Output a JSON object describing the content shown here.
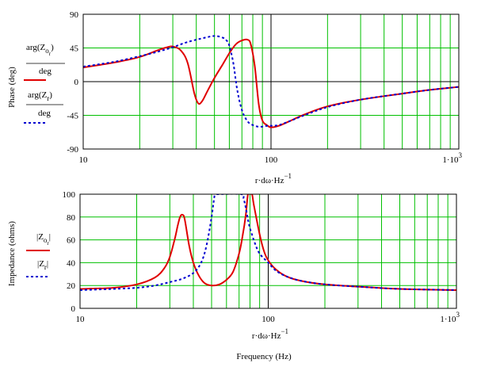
{
  "colors": {
    "background": "#ffffff",
    "grid": "#00c000",
    "axis": "#000000",
    "series_a": "#e00000",
    "series_b": "#0000d0"
  },
  "chart_data": [
    {
      "type": "line",
      "xscale": "log",
      "xlim": [
        10,
        1000
      ],
      "ylim": [
        -90,
        90
      ],
      "yticks": [
        90,
        45,
        0,
        -45,
        -90
      ],
      "xticks": [
        "10",
        "100",
        "1·10"
      ],
      "xtick_exponent": "3",
      "ylabel": "Phase (deg)",
      "xlabel_expr": "r·dω·Hz",
      "xlabel_exponent": "−1",
      "legend": [
        {
          "num": "arg(Z",
          "sub": "o",
          "subsub": "r",
          "tail": ")",
          "den": "deg"
        },
        {
          "num": "arg(Z",
          "sub": "r",
          "subsub": "",
          "tail": ")",
          "den": "deg"
        }
      ],
      "series": [
        {
          "style": "solid",
          "x": [
            10,
            12,
            15,
            20,
            25,
            28,
            30,
            33,
            36,
            39,
            41,
            43,
            46,
            50,
            55,
            60,
            65,
            70,
            75,
            78,
            82,
            86,
            90,
            95,
            100,
            110,
            125,
            150,
            200,
            300,
            500,
            700,
            1000
          ],
          "y": [
            19,
            22,
            26,
            33,
            42,
            46,
            47,
            42,
            25,
            -15,
            -29,
            -26,
            -12,
            5,
            22,
            38,
            50,
            55,
            56,
            50,
            20,
            -30,
            -52,
            -58,
            -61,
            -59,
            -53,
            -44,
            -33,
            -24,
            -16,
            -11,
            -7
          ]
        },
        {
          "style": "dashed",
          "x": [
            10,
            12,
            15,
            20,
            25,
            30,
            35,
            40,
            45,
            50,
            55,
            58,
            60,
            63,
            66,
            70,
            75,
            80,
            85,
            90,
            95,
            100,
            110,
            125,
            150,
            200,
            300,
            500,
            700,
            1000
          ],
          "y": [
            20,
            23,
            27,
            34,
            40,
            46,
            52,
            56,
            59,
            61,
            59,
            55,
            48,
            25,
            -10,
            -38,
            -53,
            -58,
            -60,
            -60,
            -59,
            -59,
            -58,
            -53,
            -45,
            -34,
            -24,
            -16,
            -11,
            -7
          ]
        }
      ]
    },
    {
      "type": "line",
      "xscale": "log",
      "xlim": [
        10,
        1000
      ],
      "ylim": [
        0,
        100
      ],
      "yticks": [
        100,
        80,
        60,
        40,
        20,
        0
      ],
      "xticks": [
        "10",
        "100",
        "1·10"
      ],
      "xtick_exponent": "3",
      "ylabel": "Impedance (ohms)",
      "xlabel_expr": "r·dω·Hz",
      "xlabel_exponent": "−1",
      "title_bottom": "Frequency (Hz)",
      "legend": [
        {
          "num": "|Z",
          "sub": "o",
          "subsub": "r",
          "tail": "|",
          "den": ""
        },
        {
          "num": "|Z",
          "sub": "r",
          "subsub": "",
          "tail": "|",
          "den": ""
        }
      ],
      "series": [
        {
          "style": "solid",
          "x": [
            10,
            15,
            20,
            25,
            28,
            30,
            32,
            33,
            34,
            35,
            36,
            38,
            40,
            43,
            46,
            50,
            55,
            60,
            65,
            70,
            73,
            76,
            78,
            80,
            82,
            84,
            90,
            95,
            100,
            110,
            125,
            150,
            200,
            300,
            500,
            1000
          ],
          "y": [
            17,
            18,
            21,
            27,
            35,
            45,
            62,
            72,
            80,
            82,
            78,
            55,
            40,
            28,
            22,
            20,
            21,
            25,
            32,
            48,
            63,
            82,
            100,
            100,
            100,
            90,
            65,
            50,
            42,
            34,
            28,
            24,
            21,
            19,
            17,
            16
          ]
        },
        {
          "style": "dashed",
          "x": [
            10,
            15,
            20,
            25,
            30,
            35,
            40,
            44,
            47,
            50,
            52,
            53,
            72,
            74,
            76,
            78,
            80,
            85,
            90,
            100,
            110,
            125,
            150,
            200,
            300,
            500,
            1000
          ],
          "y": [
            16,
            17,
            18,
            20,
            23,
            26,
            31,
            40,
            55,
            80,
            100,
            100,
            100,
            96,
            88,
            78,
            70,
            57,
            48,
            40,
            33,
            28,
            24,
            21,
            19,
            17,
            16
          ]
        }
      ]
    }
  ]
}
